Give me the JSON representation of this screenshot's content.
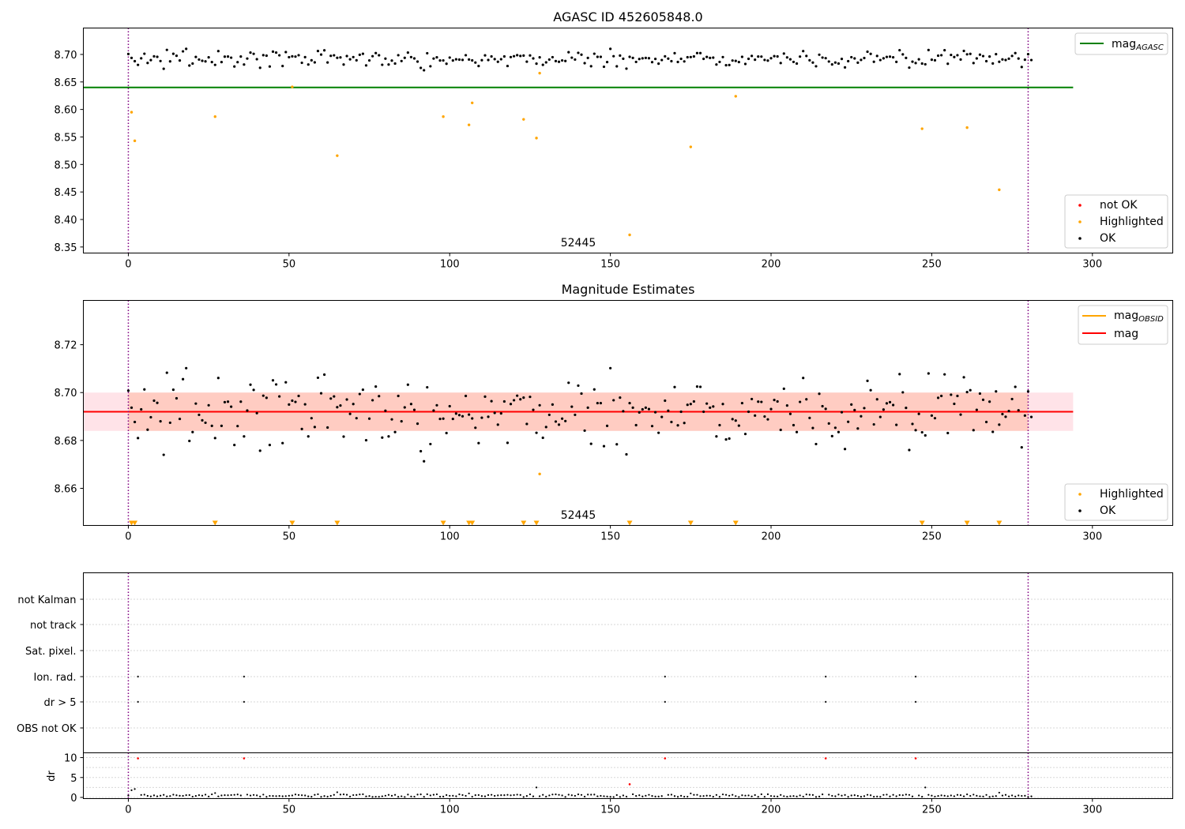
{
  "figure": {
    "background": "#ffffff"
  },
  "chart_data": [
    {
      "id": "agasc",
      "type": "scatter",
      "title": "AGASC ID 452605848.0",
      "xlabel": "",
      "ylabel": "",
      "xlim": [
        -14,
        325
      ],
      "ylim": [
        8.339,
        8.748
      ],
      "xticks": [
        0,
        50,
        100,
        150,
        200,
        250,
        300
      ],
      "yticks": [
        8.35,
        8.4,
        8.45,
        8.5,
        8.55,
        8.6,
        8.65,
        8.7
      ],
      "ytick_labels": [
        "8.35",
        "8.40",
        "8.45",
        "8.50",
        "8.55",
        "8.60",
        "8.65",
        "8.70"
      ],
      "obsid_label": "52445",
      "vlines": [
        0,
        280
      ],
      "hline": {
        "y": 8.64,
        "x_range": [
          -14,
          294
        ],
        "color": "#008000"
      },
      "legend_top": {
        "position": "top-right",
        "entries": [
          {
            "label": "mag",
            "sub": "AGASC",
            "color": "#008000",
            "marker": "line"
          }
        ]
      },
      "legend_bottom": {
        "position": "lower-right",
        "entries": [
          {
            "label": "not OK",
            "color": "#ff0000",
            "marker": "dot"
          },
          {
            "label": "Highlighted",
            "color": "#ffa500",
            "marker": "dot"
          },
          {
            "label": "OK",
            "color": "#000000",
            "marker": "dot"
          }
        ]
      },
      "series": [
        {
          "name": "OK",
          "color": "#000000"
        },
        {
          "name": "Highlighted",
          "color": "#ffa500",
          "points": [
            [
              1,
              8.595
            ],
            [
              2,
              8.543
            ],
            [
              27,
              8.587
            ],
            [
              51,
              8.641
            ],
            [
              65,
              8.516
            ],
            [
              98,
              8.587
            ],
            [
              106,
              8.572
            ],
            [
              107,
              8.612
            ],
            [
              123,
              8.582
            ],
            [
              127,
              8.548
            ],
            [
              128,
              8.666
            ],
            [
              156,
              8.372
            ],
            [
              175,
              8.532
            ],
            [
              189,
              8.624
            ],
            [
              247,
              8.565
            ],
            [
              261,
              8.567
            ],
            [
              271,
              8.454
            ]
          ]
        }
      ]
    },
    {
      "id": "estimates",
      "type": "scatter",
      "title": "Magnitude Estimates",
      "xlabel": "",
      "ylabel": "",
      "xlim": [
        -14,
        325
      ],
      "ylim": [
        8.6445,
        8.7385
      ],
      "xticks": [
        0,
        50,
        100,
        150,
        200,
        250,
        300
      ],
      "yticks": [
        8.66,
        8.68,
        8.7,
        8.72
      ],
      "ytick_labels": [
        "8.66",
        "8.68",
        "8.70",
        "8.72"
      ],
      "obsid_label": "52445",
      "vlines": [
        0,
        280
      ],
      "bands": [
        {
          "y0": 8.684,
          "y1": 8.7,
          "x_range": [
            -14,
            294
          ],
          "color": "#ffc0cb",
          "opacity": 0.45
        },
        {
          "y0": 8.684,
          "y1": 8.7,
          "x_range": [
            0,
            280
          ],
          "color": "#ffa07a",
          "opacity": 0.35
        }
      ],
      "lines": [
        {
          "name": "mag OBSID",
          "y": 8.692,
          "x_range": [
            0,
            280
          ],
          "color": "#ffa500"
        },
        {
          "name": "mag",
          "y": 8.692,
          "x_range": [
            -14,
            294
          ],
          "color": "#ff0000"
        }
      ],
      "legend_top": {
        "position": "top-right",
        "entries": [
          {
            "label": "mag",
            "sub": "OBSID",
            "color": "#ffa500",
            "marker": "line"
          },
          {
            "label": "mag",
            "sub": "",
            "color": "#ff0000",
            "marker": "line"
          }
        ]
      },
      "legend_bottom": {
        "position": "lower-right",
        "entries": [
          {
            "label": "Highlighted",
            "color": "#ffa500",
            "marker": "dot"
          },
          {
            "label": "OK",
            "color": "#000000",
            "marker": "dot"
          }
        ]
      },
      "series": [
        {
          "name": "OK",
          "color": "#000000"
        },
        {
          "name": "Highlighted",
          "color": "#ffa500",
          "points": [
            [
              128,
              8.666
            ]
          ]
        },
        {
          "name": "Highlighted (out of range)",
          "color": "#ffa500",
          "marker": "triangle-down",
          "x": [
            1,
            2,
            27,
            51,
            65,
            98,
            106,
            107,
            123,
            127,
            156,
            175,
            189,
            247,
            261,
            271
          ]
        }
      ]
    },
    {
      "id": "flags",
      "type": "scatter",
      "xlabel": "",
      "ylabel": "",
      "xlim": [
        -14,
        325
      ],
      "categories": [
        "not Kalman",
        "not track",
        "Sat. pixel.",
        "Ion. rad.",
        "dr > 5",
        "OBS not OK"
      ],
      "vlines": [
        0,
        280
      ],
      "series": [
        {
          "name": "Ion. rad.",
          "x": [
            3,
            36,
            167,
            217,
            245
          ]
        },
        {
          "name": "dr > 5",
          "x": [
            3,
            36,
            167,
            217,
            245
          ]
        }
      ]
    },
    {
      "id": "dr",
      "type": "scatter",
      "xlabel": "",
      "ylabel": "dr",
      "xlim": [
        -14,
        325
      ],
      "ylim": [
        -0.3,
        11.2
      ],
      "xticks": [
        0,
        50,
        100,
        150,
        200,
        250,
        300
      ],
      "yticks": [
        0,
        5,
        10
      ],
      "ytick_labels": [
        "0",
        "5",
        "10"
      ],
      "vlines": [
        0,
        280
      ],
      "series": [
        {
          "name": "OK",
          "color": "#000000",
          "points": [
            [
              1,
              1.8
            ],
            [
              2,
              2.1
            ],
            [
              27,
              1.1
            ],
            [
              65,
              1.3
            ],
            [
              106,
              1.0
            ],
            [
              127,
              2.5
            ],
            [
              175,
              1.0
            ],
            [
              248,
              2.5
            ],
            [
              271,
              1.2
            ]
          ]
        },
        {
          "name": "not OK",
          "color": "#ff0000",
          "points": [
            [
              156,
              3.3
            ],
            [
              3,
              9.8
            ],
            [
              36,
              9.8
            ],
            [
              167,
              9.8
            ],
            [
              217,
              9.8
            ],
            [
              245,
              9.8
            ]
          ]
        }
      ]
    }
  ]
}
